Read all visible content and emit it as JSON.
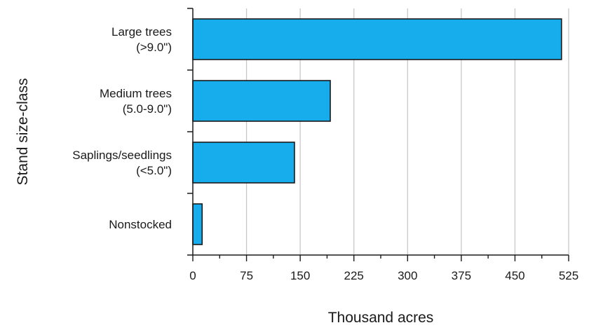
{
  "chart_data": {
    "type": "bar",
    "orientation": "horizontal",
    "categories": [
      [
        "Large trees",
        "(>9.0\")"
      ],
      [
        "Medium trees",
        "(5.0-9.0\")"
      ],
      [
        "Saplings/seedlings",
        "(<5.0\")"
      ],
      [
        "Nonstocked"
      ]
    ],
    "values": [
      515,
      192,
      142,
      13
    ],
    "xlabel": "Thousand acres",
    "ylabel": "Stand size-class",
    "xlim": [
      0,
      525
    ],
    "xticks": [
      "0",
      "75",
      "150",
      "225",
      "300",
      "375",
      "450",
      "525"
    ],
    "xtick_values": [
      0,
      75,
      150,
      225,
      300,
      375,
      450,
      525
    ],
    "grid": "vertical",
    "bar_color": "#17aceb",
    "bar_edge_color": "#1a1a1a",
    "grid_color": "#c8c8c8"
  }
}
